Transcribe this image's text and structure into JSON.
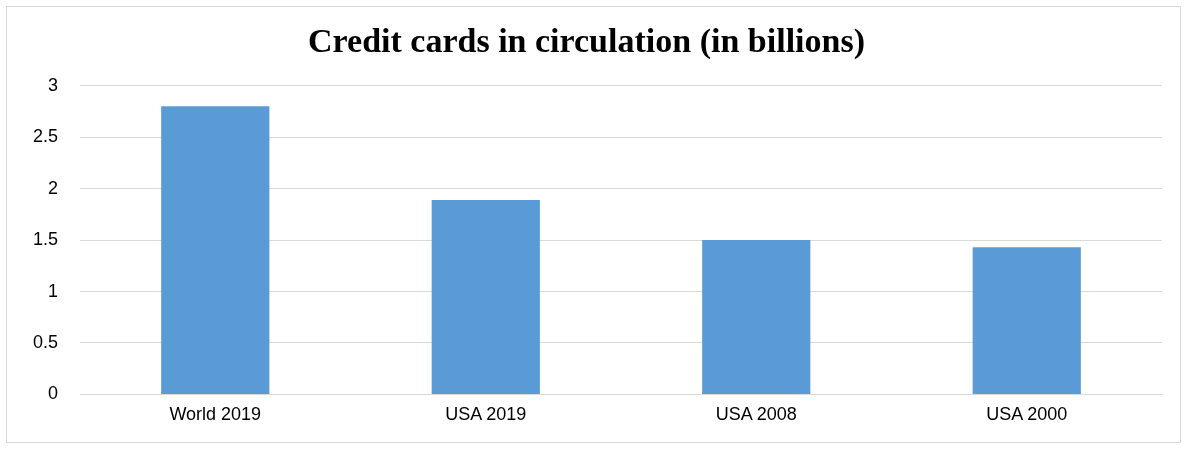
{
  "chart_data": {
    "type": "bar",
    "title": "Credit cards in circulation (in billions)",
    "categories": [
      "World 2019",
      "USA 2019",
      "USA 2008",
      "USA 2000"
    ],
    "values": [
      2.8,
      1.89,
      1.5,
      1.43
    ],
    "color": "#5b9bd5",
    "ylim": [
      0,
      3
    ],
    "yticks": [
      0,
      0.5,
      1,
      1.5,
      2,
      2.5,
      3
    ],
    "grid": "y",
    "legend": false
  }
}
